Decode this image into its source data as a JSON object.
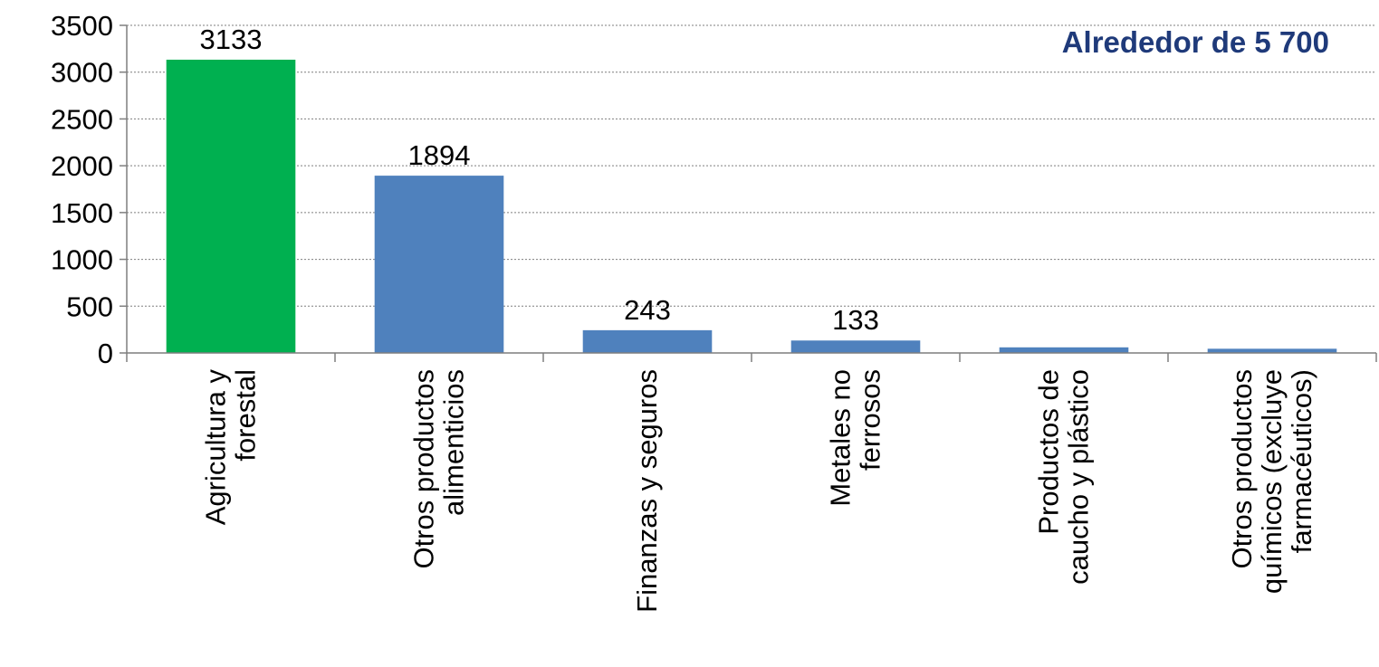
{
  "chart_data": {
    "type": "bar",
    "categories": [
      [
        "Agricultura y",
        "forestal"
      ],
      [
        "Otros productos",
        "alimenticios"
      ],
      [
        "Finanzas y seguros"
      ],
      [
        "Metales no",
        "ferrosos"
      ],
      [
        "Productos de",
        "caucho y plástico"
      ],
      [
        "Otros productos",
        "químicos (excluye",
        "farmacéuticos)"
      ]
    ],
    "values": [
      3133,
      1894,
      243,
      133,
      60,
      45
    ],
    "data_labels": [
      "3133",
      "1894",
      "243",
      "133",
      "",
      ""
    ],
    "colors": [
      "#00b050",
      "#4f81bd",
      "#4f81bd",
      "#4f81bd",
      "#4f81bd",
      "#4f81bd"
    ],
    "ylim": [
      0,
      3500
    ],
    "yticks": [
      0,
      500,
      1000,
      1500,
      2000,
      2500,
      3000,
      3500
    ],
    "grid": true,
    "title": "",
    "xlabel": "",
    "ylabel": "",
    "annotation": {
      "text": "Alrededor de 5 700",
      "color": "#1f3a7a"
    }
  }
}
